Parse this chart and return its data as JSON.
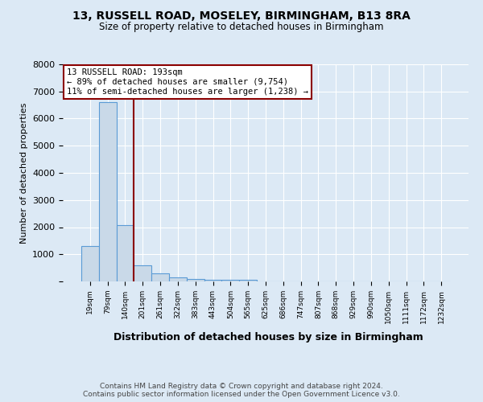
{
  "title": "13, RUSSELL ROAD, MOSELEY, BIRMINGHAM, B13 8RA",
  "subtitle": "Size of property relative to detached houses in Birmingham",
  "xlabel": "Distribution of detached houses by size in Birmingham",
  "ylabel": "Number of detached properties",
  "categories": [
    "19sqm",
    "79sqm",
    "140sqm",
    "201sqm",
    "261sqm",
    "322sqm",
    "383sqm",
    "443sqm",
    "504sqm",
    "565sqm",
    "625sqm",
    "686sqm",
    "747sqm",
    "807sqm",
    "868sqm",
    "929sqm",
    "990sqm",
    "1050sqm",
    "1111sqm",
    "1172sqm",
    "1232sqm"
  ],
  "values": [
    1300,
    6600,
    2080,
    580,
    290,
    150,
    80,
    55,
    50,
    45,
    0,
    0,
    0,
    0,
    0,
    0,
    0,
    0,
    0,
    0,
    0
  ],
  "bar_color": "#c9d9e8",
  "bar_edge_color": "#5b9bd5",
  "vline_x": 2.5,
  "vline_color": "#8b0000",
  "annotation_box_text": "13 RUSSELL ROAD: 193sqm\n← 89% of detached houses are smaller (9,754)\n11% of semi-detached houses are larger (1,238) →",
  "annotation_box_color": "#8b0000",
  "annotation_box_bg": "#ffffff",
  "ylim": [
    0,
    8000
  ],
  "yticks": [
    0,
    1000,
    2000,
    3000,
    4000,
    5000,
    6000,
    7000,
    8000
  ],
  "background_color": "#dce9f5",
  "plot_bg_color": "#dce9f5",
  "title_fontsize": 10,
  "subtitle_fontsize": 8.5,
  "footer_text": "Contains HM Land Registry data © Crown copyright and database right 2024.\nContains public sector information licensed under the Open Government Licence v3.0.",
  "grid_color": "#ffffff"
}
